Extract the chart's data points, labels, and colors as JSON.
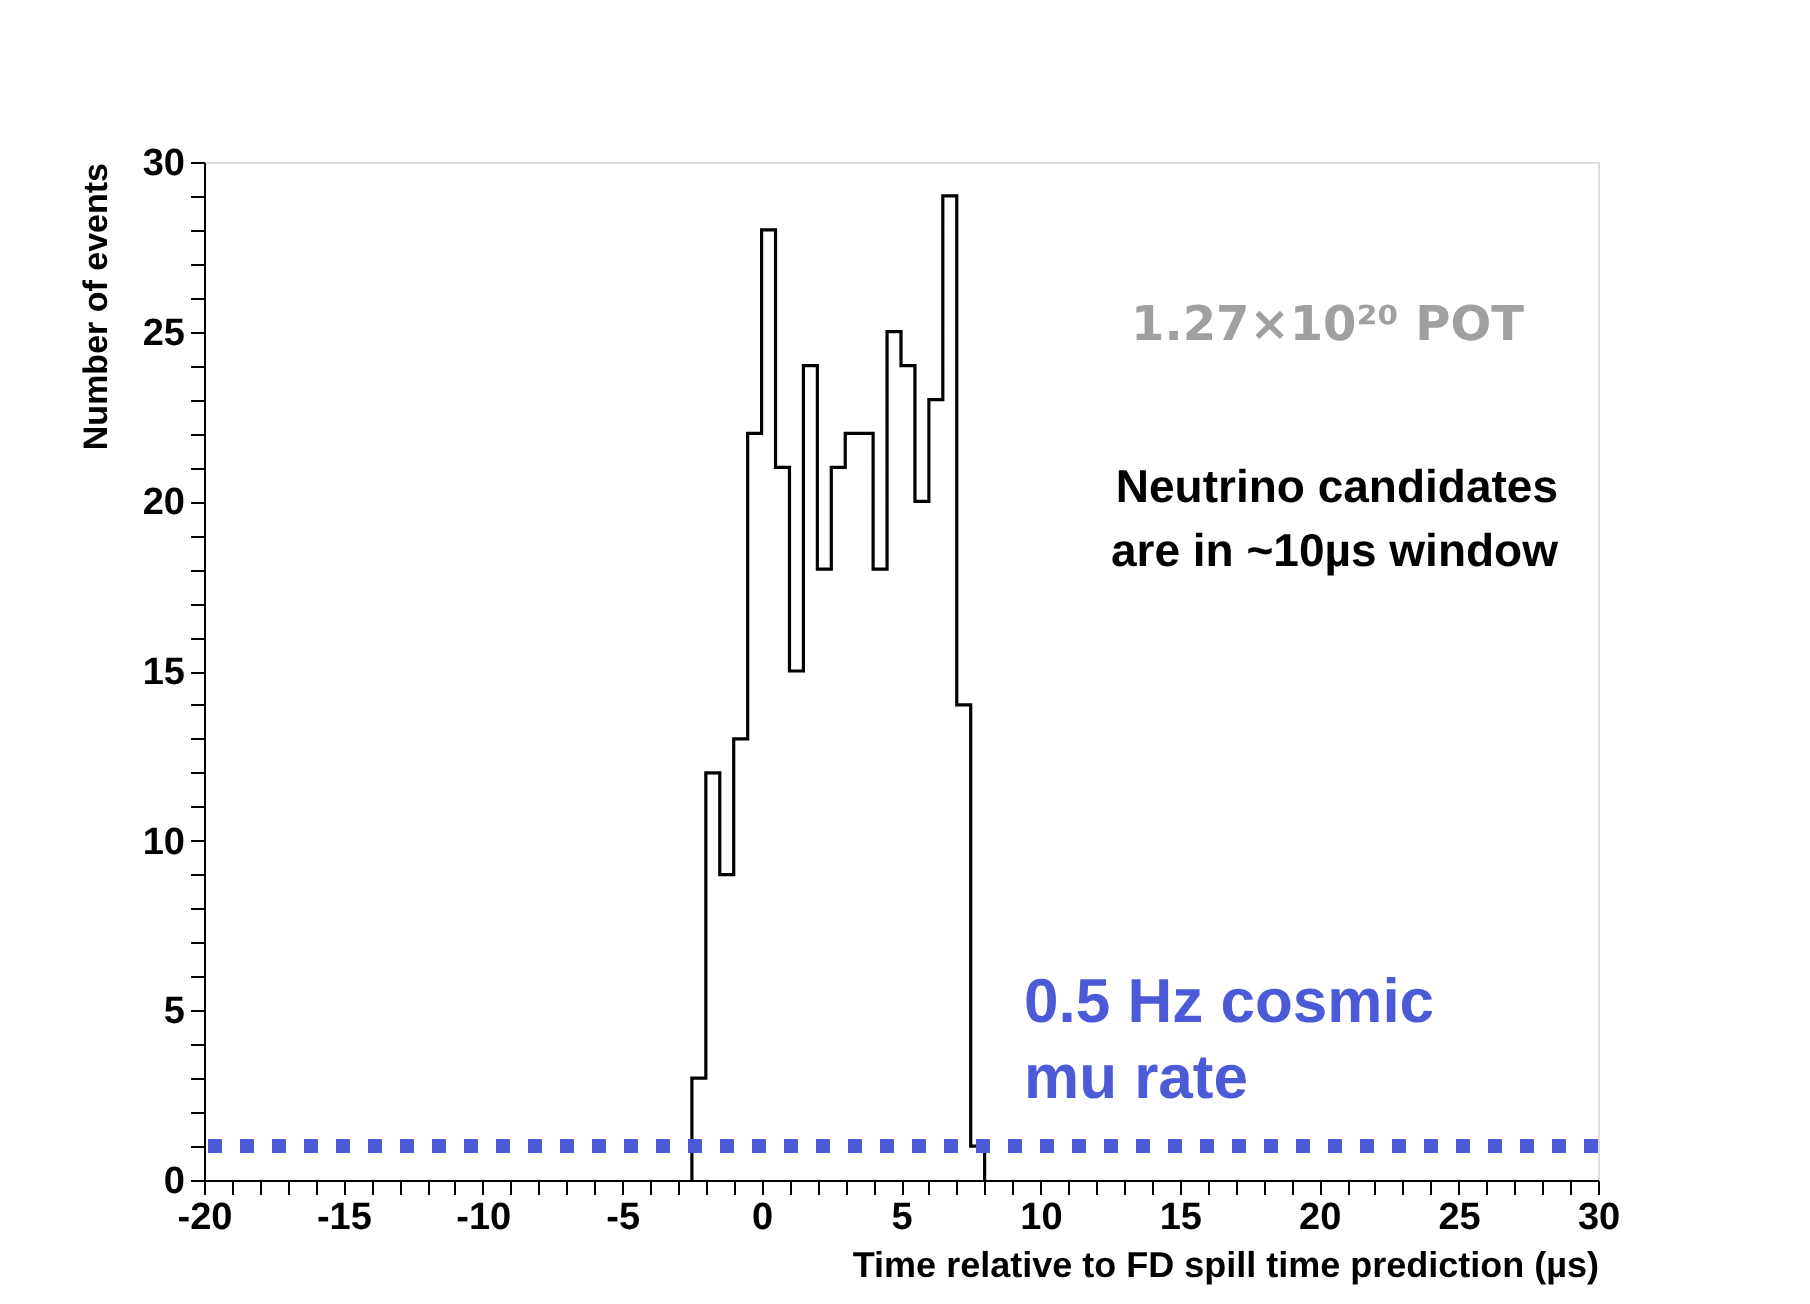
{
  "chart_data": {
    "type": "histogram",
    "xlabel": "Time relative to FD spill time prediction (µs)",
    "ylabel": "Number of events",
    "bins": [
      -2.5,
      -2,
      -1.5,
      -1,
      -0.5,
      0,
      0.5,
      1,
      1.5,
      2,
      2.5,
      3,
      3.5,
      4,
      4.5,
      5,
      5.5,
      6,
      6.5,
      7,
      7.5,
      8
    ],
    "values": [
      3,
      12,
      9,
      13,
      22,
      28,
      21,
      15,
      24,
      18,
      21,
      22,
      22,
      18,
      25,
      24,
      20,
      23,
      29,
      14,
      1
    ],
    "color": "#000000",
    "xlim": [
      -20,
      30
    ],
    "xticks": [
      -20,
      {
        "value": -19,
        "label": null
      },
      {
        "value": -18,
        "label": null
      },
      {
        "value": -17,
        "label": null
      },
      {
        "value": -16,
        "label": null
      },
      -15,
      {
        "value": -14,
        "label": null
      },
      {
        "value": -13,
        "label": null
      },
      {
        "value": -12,
        "label": null
      },
      {
        "value": -11,
        "label": null
      },
      -10,
      {
        "value": -9,
        "label": null
      },
      {
        "value": -8,
        "label": null
      },
      {
        "value": -7,
        "label": null
      },
      {
        "value": -6,
        "label": null
      },
      -5,
      {
        "value": -4,
        "label": null
      },
      {
        "value": -3,
        "label": null
      },
      {
        "value": -2,
        "label": null
      },
      {
        "value": -1,
        "label": null
      },
      0,
      {
        "value": 1,
        "label": null
      },
      {
        "value": 2,
        "label": null
      },
      {
        "value": 3,
        "label": null
      },
      {
        "value": 4,
        "label": null
      },
      5,
      {
        "value": 6,
        "label": null
      },
      {
        "value": 7,
        "label": null
      },
      {
        "value": 8,
        "label": null
      },
      {
        "value": 9,
        "label": null
      },
      10,
      {
        "value": 11,
        "label": null
      },
      {
        "value": 12,
        "label": null
      },
      {
        "value": 13,
        "label": null
      },
      {
        "value": 14,
        "label": null
      },
      15,
      {
        "value": 16,
        "label": null
      },
      {
        "value": 17,
        "label": null
      },
      {
        "value": 18,
        "label": null
      },
      {
        "value": 19,
        "label": null
      },
      20,
      {
        "value": 21,
        "label": null
      },
      {
        "value": 22,
        "label": null
      },
      {
        "value": 23,
        "label": null
      },
      {
        "value": 24,
        "label": null
      },
      25,
      {
        "value": 26,
        "label": null
      },
      {
        "value": 27,
        "label": null
      },
      {
        "value": 28,
        "label": null
      },
      {
        "value": 29,
        "label": null
      },
      30
    ],
    "ylim": [
      0,
      30
    ],
    "yticks": [
      0,
      {
        "value": 1,
        "label": null
      },
      {
        "value": 2,
        "label": null
      },
      {
        "value": 3,
        "label": null
      },
      {
        "value": 4,
        "label": null
      },
      5,
      {
        "value": 6,
        "label": null
      },
      {
        "value": 7,
        "label": null
      },
      {
        "value": 8,
        "label": null
      },
      {
        "value": 9,
        "label": null
      },
      10,
      {
        "value": 11,
        "label": null
      },
      {
        "value": 12,
        "label": null
      },
      {
        "value": 13,
        "label": null
      },
      {
        "value": 14,
        "label": null
      },
      15,
      {
        "value": 16,
        "label": null
      },
      {
        "value": 17,
        "label": null
      },
      {
        "value": 18,
        "label": null
      },
      {
        "value": 19,
        "label": null
      },
      20,
      {
        "value": 21,
        "label": null
      },
      {
        "value": 22,
        "label": null
      },
      {
        "value": 23,
        "label": null
      },
      {
        "value": 24,
        "label": null
      },
      25,
      {
        "value": 26,
        "label": null
      },
      {
        "value": 27,
        "label": null
      },
      {
        "value": 28,
        "label": null
      },
      {
        "value": 29,
        "label": null
      },
      30
    ],
    "ref_lines": [
      {
        "axis": "y",
        "value": 1,
        "label": "0.5 Hz cosmic\nmu rate",
        "color": "#4b5bd8",
        "line_style": "dotted"
      }
    ],
    "annotations": [
      "1.27×10²⁰ POT",
      "Neutrino candidates\nare in ~10µs window"
    ],
    "grid": false
  }
}
